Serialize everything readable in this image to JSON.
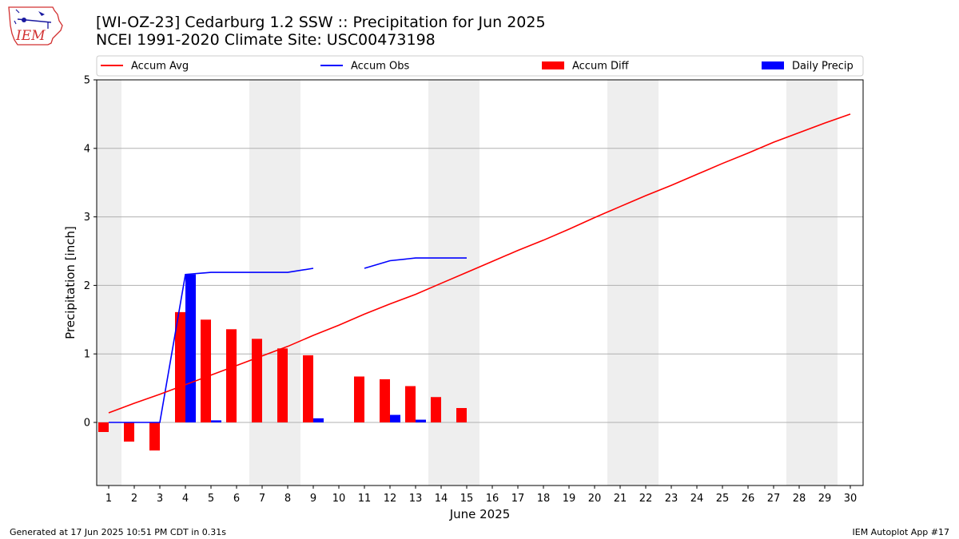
{
  "header": {
    "title_line1": "[WI-OZ-23] Cedarburg 1.2 SSW :: Precipitation for Jun 2025",
    "title_line2": "NCEI 1991-2020 Climate Site: USC00473198",
    "logo_text": "IEM"
  },
  "footer": {
    "generated": "Generated at 17 Jun 2025 10:51 PM CDT in 0.31s",
    "app": "IEM Autoplot App #17"
  },
  "colors": {
    "accum_avg": "#ff0000",
    "accum_obs": "#0000ff",
    "accum_diff": "#ff0000",
    "daily_precip": "#0000ff",
    "weekend_shade": "#eeeeee",
    "grid": "#b0b0b0"
  },
  "chart_data": {
    "type": "bar",
    "xlabel": "June 2025",
    "ylabel": "Precipitation [inch]",
    "x": [
      1,
      2,
      3,
      4,
      5,
      6,
      7,
      8,
      9,
      10,
      11,
      12,
      13,
      14,
      15,
      16,
      17,
      18,
      19,
      20,
      21,
      22,
      23,
      24,
      25,
      26,
      27,
      28,
      29,
      30
    ],
    "x_tick_labels": [
      "1",
      "2",
      "3",
      "4",
      "5",
      "6",
      "7",
      "8",
      "9",
      "10",
      "11",
      "12",
      "13",
      "14",
      "15",
      "16",
      "17",
      "18",
      "19",
      "20",
      "21",
      "22",
      "23",
      "24",
      "25",
      "26",
      "27",
      "28",
      "29",
      "30"
    ],
    "y_ticks": [
      0,
      1,
      2,
      3,
      4,
      5
    ],
    "ylim": [
      -0.92,
      5.0
    ],
    "grid": "horizontal",
    "legend": {
      "placement": "top",
      "entries": [
        {
          "label": "Accum Avg",
          "kind": "line",
          "color": "#ff0000"
        },
        {
          "label": "Accum Obs",
          "kind": "line",
          "color": "#0000ff"
        },
        {
          "label": "Accum Diff",
          "kind": "bar",
          "color": "#ff0000"
        },
        {
          "label": "Daily Precip",
          "kind": "bar",
          "color": "#0000ff"
        }
      ]
    },
    "weekend_days": [
      [
        1,
        1
      ],
      [
        7,
        8
      ],
      [
        14,
        15
      ],
      [
        21,
        22
      ],
      [
        28,
        29
      ]
    ],
    "series": [
      {
        "name": "Accum Avg",
        "kind": "line",
        "values": [
          0.14,
          0.28,
          0.41,
          0.55,
          0.69,
          0.83,
          0.97,
          1.11,
          1.27,
          1.42,
          1.58,
          1.73,
          1.87,
          2.03,
          2.19,
          2.35,
          2.51,
          2.66,
          2.82,
          2.99,
          3.15,
          3.31,
          3.46,
          3.62,
          3.78,
          3.93,
          4.09,
          4.23,
          4.37,
          4.5
        ]
      },
      {
        "name": "Accum Obs",
        "kind": "line",
        "values": [
          0.0,
          0.0,
          0.0,
          2.16,
          2.19,
          2.19,
          2.19,
          2.19,
          2.25,
          null,
          2.25,
          2.36,
          2.4,
          2.4,
          2.4,
          null,
          null,
          null,
          null,
          null,
          null,
          null,
          null,
          null,
          null,
          null,
          null,
          null,
          null,
          null
        ]
      },
      {
        "name": "Accum Diff",
        "kind": "bar",
        "values": [
          -0.14,
          -0.28,
          -0.41,
          1.61,
          1.5,
          1.36,
          1.22,
          1.08,
          0.98,
          null,
          0.67,
          0.63,
          0.53,
          0.37,
          0.21,
          null,
          null,
          null,
          null,
          null,
          null,
          null,
          null,
          null,
          null,
          null,
          null,
          null,
          null,
          null
        ]
      },
      {
        "name": "Daily Precip",
        "kind": "bar",
        "values": [
          0.0,
          0.0,
          0.0,
          2.16,
          0.03,
          0.0,
          0.0,
          0.0,
          0.06,
          null,
          0.0,
          0.11,
          0.04,
          0.0,
          0.0,
          null,
          null,
          null,
          null,
          null,
          null,
          null,
          null,
          null,
          null,
          null,
          null,
          null,
          null,
          null
        ]
      }
    ]
  }
}
